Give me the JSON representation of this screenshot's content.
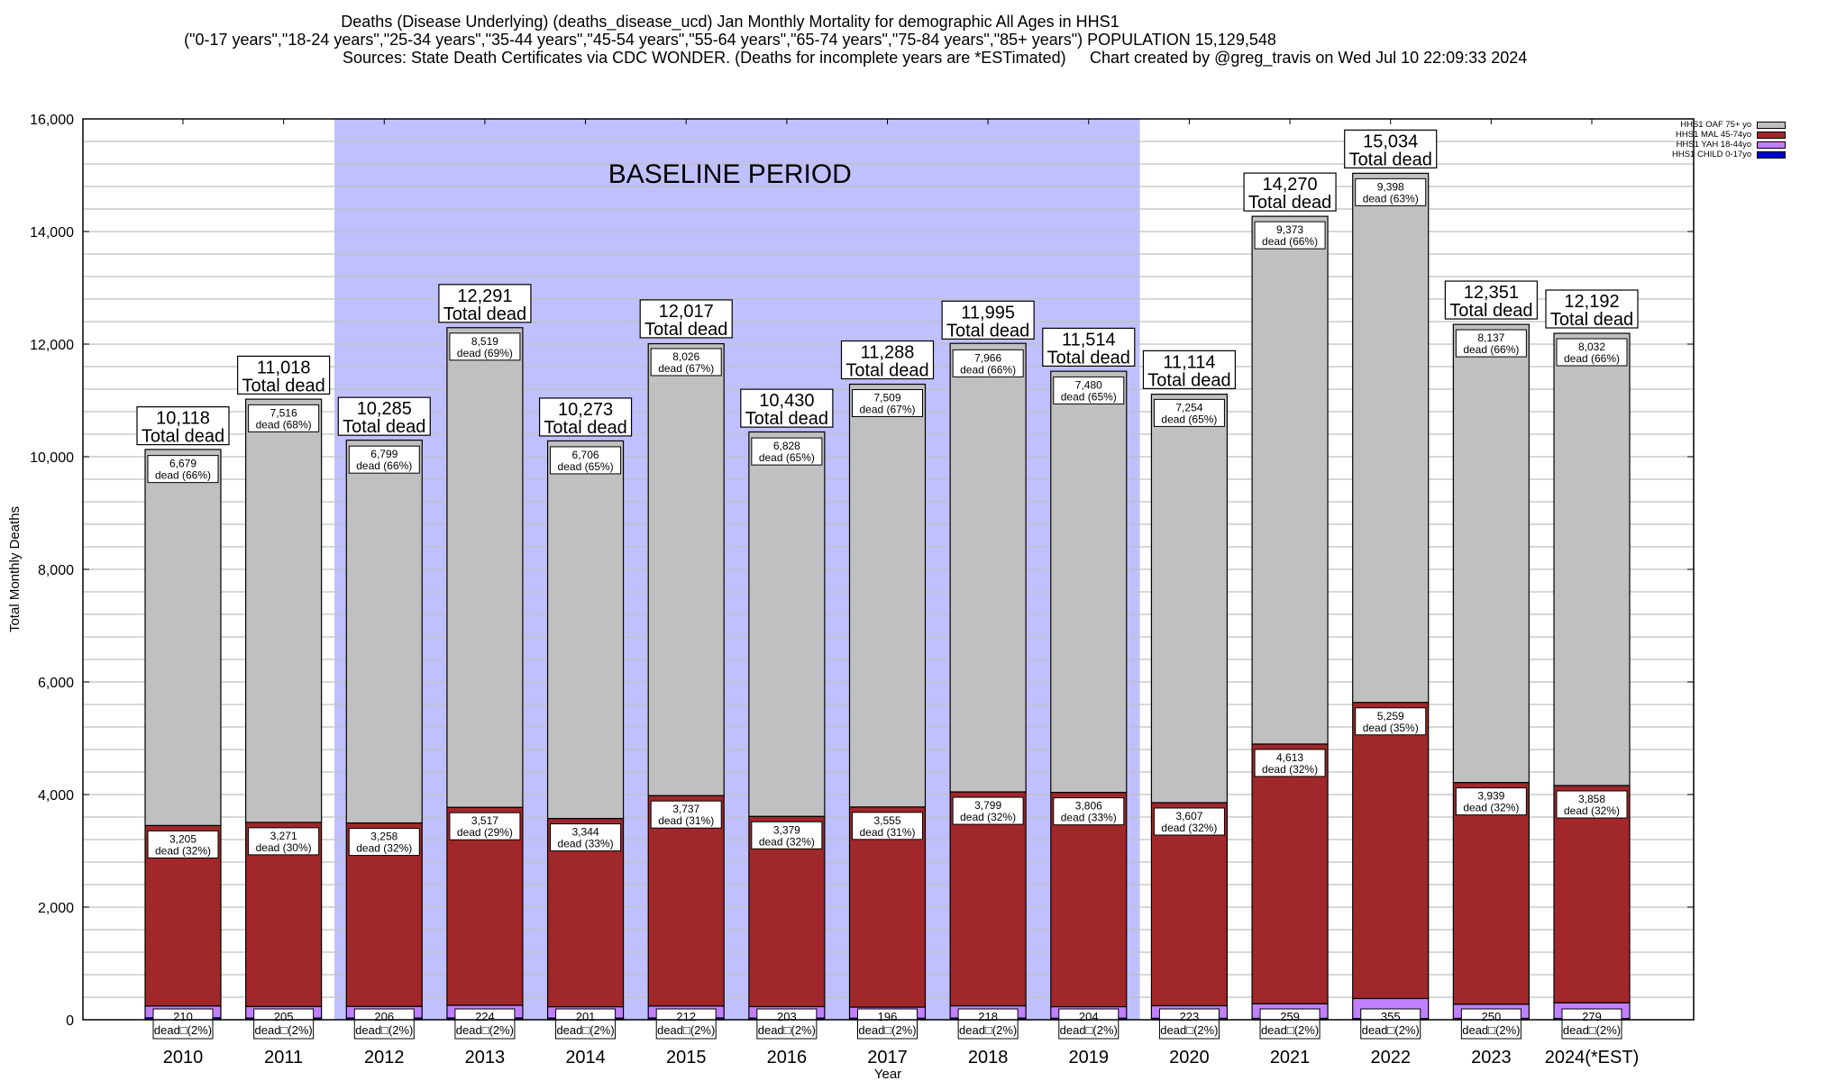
{
  "chart_data": {
    "type": "bar",
    "stacked": true,
    "title": "Deaths (Disease Underlying) (deaths_disease_ucd) Jan Monthly Mortality for demographic All Ages in HHS1",
    "subtitle": "(\"0-17 years\",\"18-24 years\",\"25-34 years\",\"35-44 years\",\"45-54 years\",\"55-64 years\",\"65-74 years\",\"75-84 years\",\"85+ years\") POPULATION 15,129,548",
    "sources": "Sources: State Death Certificates via CDC WONDER. (Deaths for incomplete years are *ESTimated)",
    "credit": "Chart created by @greg_travis on Wed Jul 10 22:09:33 2024",
    "xlabel": "Year",
    "ylabel": "Total Monthly Deaths",
    "ylim": [
      0,
      16000
    ],
    "yticks": [
      "0",
      "2,000",
      "4,000",
      "6,000",
      "8,000",
      "10,000",
      "12,000",
      "14,000",
      "16,000"
    ],
    "grid": true,
    "legend_position": "top-right",
    "annotation": "BASELINE PERIOD",
    "baseline_range": [
      "2012",
      "2019"
    ],
    "categories": [
      "2010",
      "2011",
      "2012",
      "2013",
      "2014",
      "2015",
      "2016",
      "2017",
      "2018",
      "2019",
      "2020",
      "2021",
      "2022",
      "2023",
      "2024(*EST)"
    ],
    "series": [
      {
        "name": "HHS1 CHILD 0-17yo",
        "color": "#0000cc",
        "values": [
          35,
          30,
          31,
          32,
          30,
          32,
          30,
          28,
          30,
          28,
          26,
          25,
          22,
          25,
          23
        ]
      },
      {
        "name": "HHS1 YAH 18-44yo",
        "color": "#c080ff",
        "values": [
          210,
          205,
          206,
          224,
          201,
          212,
          203,
          196,
          218,
          204,
          223,
          259,
          355,
          250,
          279
        ]
      },
      {
        "name": "HHS1 MAL 45-74yo",
        "color": "#a0282a",
        "values": [
          3205,
          3271,
          3258,
          3517,
          3344,
          3737,
          3379,
          3555,
          3799,
          3806,
          3607,
          4613,
          5259,
          3939,
          3858
        ]
      },
      {
        "name": "HHS1 OAF 75+ yo",
        "color": "#c0c0c0",
        "values": [
          6679,
          7516,
          6799,
          8519,
          6706,
          8026,
          6828,
          7509,
          7966,
          7480,
          7254,
          9373,
          9398,
          8137,
          8032
        ]
      }
    ],
    "totals": [
      10118,
      11018,
      10285,
      12291,
      10273,
      12017,
      10430,
      11288,
      11995,
      11514,
      11114,
      14270,
      15034,
      12351,
      12192
    ],
    "total_labels": [
      "10,118",
      "11,018",
      "10,285",
      "12,291",
      "10,273",
      "12,017",
      "10,430",
      "11,288",
      "11,995",
      "11,514",
      "11,114",
      "14,270",
      "15,034",
      "12,351",
      "12,192"
    ],
    "total_suffix": "Total dead",
    "oaf_labels": [
      "6,679",
      "7,516",
      "6,799",
      "8,519",
      "6,706",
      "8,026",
      "6,828",
      "7,509",
      "7,966",
      "7,480",
      "7,254",
      "9,373",
      "9,398",
      "8,137",
      "8,032"
    ],
    "oaf_pct": [
      "dead (66%)",
      "dead (68%)",
      "dead (66%)",
      "dead (69%)",
      "dead (65%)",
      "dead (67%)",
      "dead (65%)",
      "dead (67%)",
      "dead (66%)",
      "dead (65%)",
      "dead (65%)",
      "dead (66%)",
      "dead (63%)",
      "dead (66%)",
      "dead (66%)"
    ],
    "mal_labels": [
      "3,205",
      "3,271",
      "3,258",
      "3,517",
      "3,344",
      "3,737",
      "3,379",
      "3,555",
      "3,799",
      "3,806",
      "3,607",
      "4,613",
      "5,259",
      "3,939",
      "3,858"
    ],
    "mal_pct": [
      "dead (32%)",
      "dead (30%)",
      "dead (32%)",
      "dead (29%)",
      "dead (33%)",
      "dead (31%)",
      "dead (32%)",
      "dead (31%)",
      "dead (32%)",
      "dead (33%)",
      "dead (32%)",
      "dead (32%)",
      "dead (35%)",
      "dead (32%)",
      "dead (32%)"
    ],
    "yah_labels": [
      "210",
      "205",
      "206",
      "224",
      "201",
      "212",
      "203",
      "196",
      "218",
      "204",
      "223",
      "259",
      "355",
      "250",
      "279"
    ],
    "yah_pct": [
      "dead□(2%)",
      "dead□(2%)",
      "dead□(2%)",
      "dead□(2%)",
      "dead□(2%)",
      "dead□(2%)",
      "dead□(2%)",
      "dead□(2%)",
      "dead□(2%)",
      "dead□(2%)",
      "dead□(2%)",
      "dead□(2%)",
      "dead□(2%)",
      "dead□(2%)",
      "dead□(2%)"
    ]
  },
  "colors": {
    "baseline_fill": "#c0c0ff",
    "grid": "#c0c0c0"
  }
}
